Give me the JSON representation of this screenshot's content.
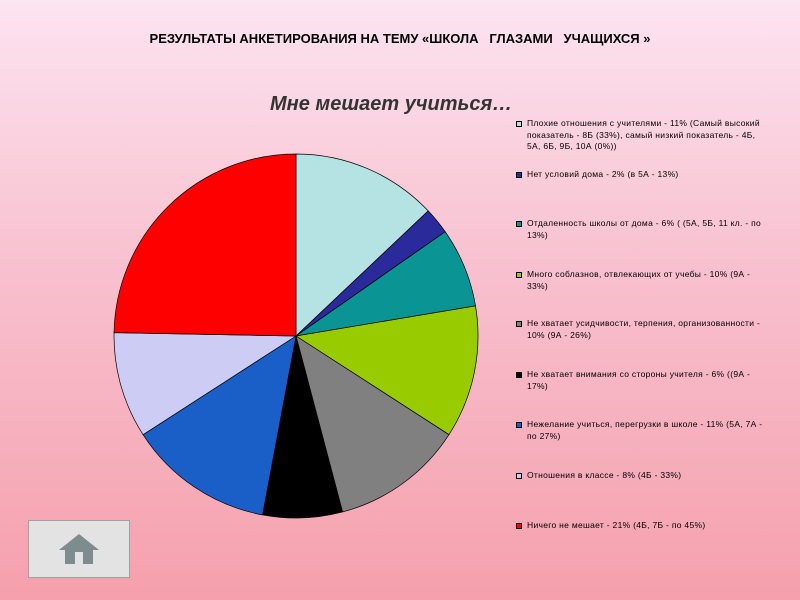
{
  "slide": {
    "title": "РЕЗУЛЬТАТЫ АНКЕТИРОВАНИЯ НА ТЕМУ «ШКОЛА   ГЛАЗАМИ   УЧАЩИХСЯ »"
  },
  "nav": {
    "home_icon": "home-icon"
  },
  "chart_data": {
    "type": "pie",
    "title": "Мне мешает учиться…",
    "start_angle_deg": 0,
    "direction": "clockwise",
    "legend_position": "right",
    "slices": [
      {
        "label": "Плохие отношения с учителями - 11% (Самый высокий показатель - 8Б (33%), самый низкий показатель - 4Б, 5А, 6Б, 9Б, 10А (0%))",
        "value": 11,
        "color": "#b5e3e3"
      },
      {
        "label": "Нет условий дома - 2% (в 5А - 13%)",
        "value": 2,
        "color": "#2a2a9a"
      },
      {
        "label": "Отдаленность школы от дома - 6% ( (5А, 5Б, 11 кл. - по 13%)",
        "value": 6,
        "color": "#0a9494"
      },
      {
        "label": "Много соблазнов, отвлекающих от учебы - 10% (9А - 33%)",
        "value": 10,
        "color": "#99cc00"
      },
      {
        "label": "Не хватает усидчивости, терпения, организованности - 10% (9А - 26%)",
        "value": 10,
        "color": "#808080"
      },
      {
        "label": "Не хватает внимания со стороны учителя - 6% ((9А - 17%)",
        "value": 6,
        "color": "#000000"
      },
      {
        "label": "Нежелание учиться, перегрузки в школе - 11% (5А, 7А - по 27%)",
        "value": 11,
        "color": "#1a5fc7"
      },
      {
        "label": "Отношения в классе - 8% (4Б - 33%)",
        "value": 8,
        "color": "#ccccf5"
      },
      {
        "label": "Ничего не мешает - 21% (4Б, 7Б - по 45%)",
        "value": 21,
        "color": "#ff0000"
      }
    ]
  }
}
